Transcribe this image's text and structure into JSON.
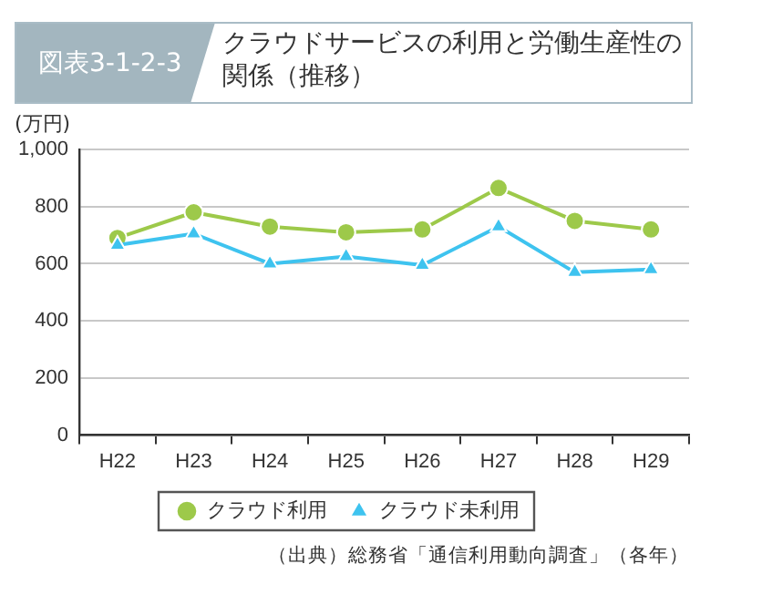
{
  "chart_data": {
    "type": "line",
    "subtitle": "図表3-1-2-3",
    "title": "クラウドサービスの利用と労働生産性の関係（推移）",
    "ylabel": "(万円)",
    "categories": [
      "H22",
      "H23",
      "H24",
      "H25",
      "H26",
      "H27",
      "H28",
      "H29"
    ],
    "series": [
      {
        "name": "クラウド利用",
        "color": "#9dc94a",
        "marker": "circle",
        "values": [
          690,
          780,
          730,
          710,
          720,
          865,
          750,
          720
        ]
      },
      {
        "name": "クラウド未利用",
        "color": "#3ec3ef",
        "marker": "triangle",
        "values": [
          665,
          705,
          600,
          625,
          595,
          730,
          570,
          580
        ]
      }
    ],
    "ylim": [
      0,
      1000
    ],
    "yticks": [
      0,
      200,
      400,
      600,
      800,
      {
        "value": 1000,
        "label": "1,000"
      }
    ],
    "grid": "y",
    "legend": "bottom",
    "annotations": [
      "（出典）総務省「通信利用動向調査」（各年）"
    ]
  }
}
